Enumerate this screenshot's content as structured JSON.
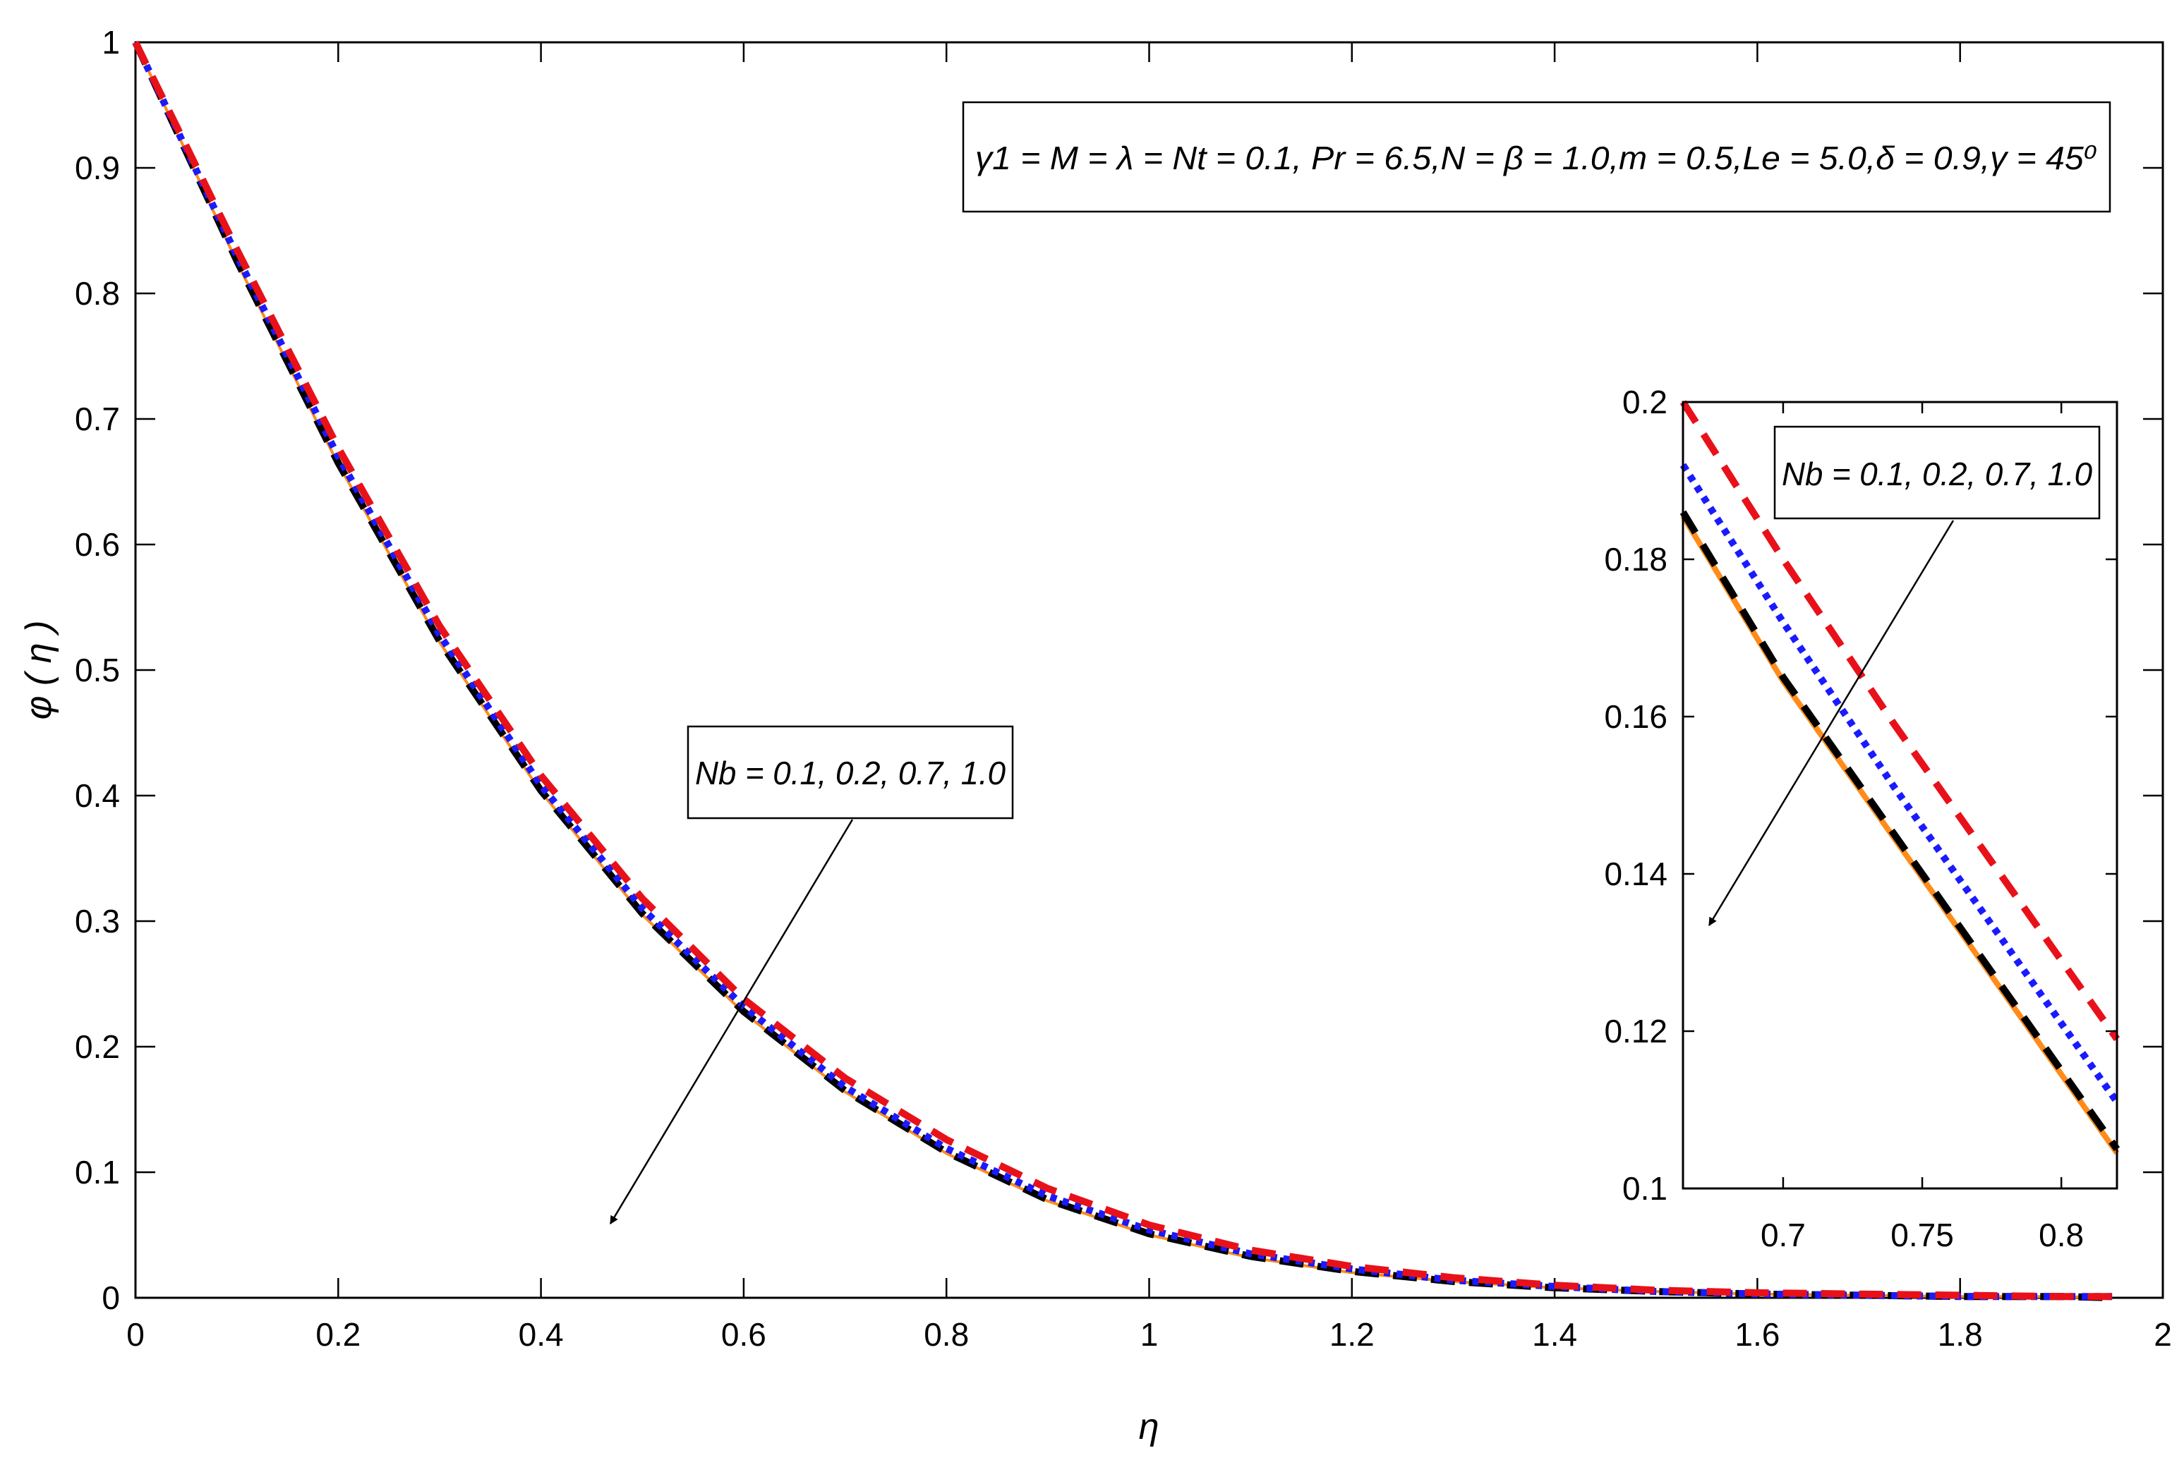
{
  "chart_data": [
    {
      "type": "line",
      "title": "",
      "xlabel": "η",
      "ylabel": "φ ( η )",
      "xlim": [
        0,
        2
      ],
      "ylim": [
        0,
        1
      ],
      "xticks": [
        "0",
        "0.2",
        "0.4",
        "0.6",
        "0.8",
        "1",
        "1.2",
        "1.4",
        "1.6",
        "1.8",
        "2"
      ],
      "yticks": [
        "0",
        "0.1",
        "0.2",
        "0.3",
        "0.4",
        "0.5",
        "0.6",
        "0.7",
        "0.8",
        "0.9",
        "1"
      ],
      "grid": false,
      "parameter_box": "γ1 = M = λ = Nt = 0.1, Pr = 6.5,N = β = 1.0,m = 0.5,Le = 5.0,δ = 0.9,γ = 45⁰",
      "annotation": "Nb = 0.1, 0.2, 0.7, 1.0",
      "x": [
        0,
        0.1,
        0.2,
        0.3,
        0.4,
        0.5,
        0.6,
        0.7,
        0.8,
        0.9,
        1.0,
        1.1,
        1.2,
        1.3,
        1.4,
        1.5,
        1.6,
        1.7,
        1.8,
        1.9,
        1.95
      ],
      "series": [
        {
          "color": "#e8111a",
          "dash": "dashed",
          "values": [
            1.0,
            0.835,
            0.677,
            0.535,
            0.416,
            0.318,
            0.238,
            0.175,
            0.126,
            0.087,
            0.058,
            0.038,
            0.025,
            0.016,
            0.01,
            0.006,
            0.004,
            0.003,
            0.002,
            0.001,
            0.001
          ]
        },
        {
          "color": "#1a1aff",
          "dash": "dotted",
          "values": [
            1.0,
            0.83,
            0.67,
            0.528,
            0.408,
            0.31,
            0.232,
            0.168,
            0.119,
            0.081,
            0.054,
            0.035,
            0.023,
            0.014,
            0.009,
            0.005,
            0.003,
            0.002,
            0.001,
            0.001,
            0.001
          ]
        },
        {
          "color": "#000000",
          "dash": "dashed",
          "values": [
            1.0,
            0.826,
            0.665,
            0.523,
            0.404,
            0.306,
            0.228,
            0.165,
            0.116,
            0.078,
            0.051,
            0.033,
            0.021,
            0.013,
            0.008,
            0.005,
            0.003,
            0.002,
            0.001,
            0.001,
            0.0
          ]
        },
        {
          "color": "#ff8c1a",
          "dash": "solid",
          "values": [
            1.0,
            0.825,
            0.664,
            0.522,
            0.403,
            0.305,
            0.227,
            0.164,
            0.115,
            0.077,
            0.05,
            0.032,
            0.02,
            0.013,
            0.008,
            0.005,
            0.003,
            0.002,
            0.001,
            0.001,
            0.0
          ]
        }
      ]
    },
    {
      "type": "line",
      "title": "",
      "xlim": [
        0.664,
        0.82
      ],
      "ylim": [
        0.1,
        0.2
      ],
      "xticks": [
        "0.7",
        "0.75",
        "0.8"
      ],
      "yticks": [
        "0.1",
        "0.12",
        "0.14",
        "0.16",
        "0.18",
        "0.2"
      ],
      "annotation": "Nb = 0.1, 0.2, 0.7, 1.0",
      "x": [
        0.664,
        0.7,
        0.74,
        0.78,
        0.82
      ],
      "series": [
        {
          "color": "#e8111a",
          "dash": "dashed",
          "values": [
            0.2,
            0.18,
            0.159,
            0.139,
            0.119
          ]
        },
        {
          "color": "#1a1aff",
          "dash": "dotted",
          "values": [
            0.192,
            0.172,
            0.151,
            0.131,
            0.111
          ]
        },
        {
          "color": "#000000",
          "dash": "dashed",
          "values": [
            0.186,
            0.165,
            0.145,
            0.125,
            0.105
          ]
        },
        {
          "color": "#ff8c1a",
          "dash": "solid",
          "values": [
            0.1855,
            0.1645,
            0.1445,
            0.1245,
            0.1045
          ]
        }
      ]
    }
  ]
}
